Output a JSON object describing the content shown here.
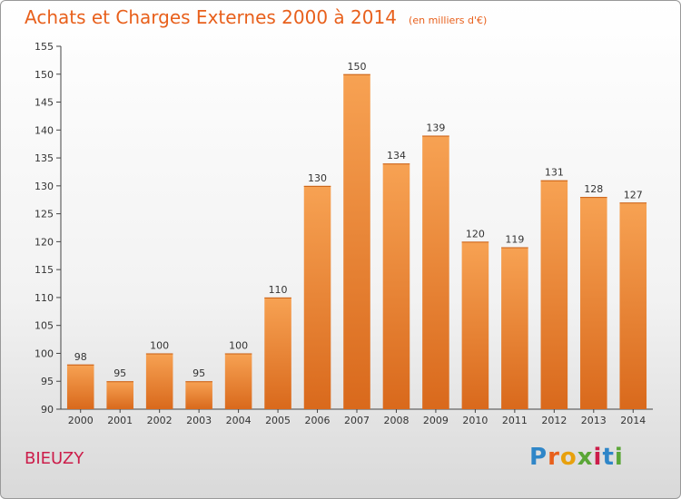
{
  "header": {
    "title": "Achats et Charges Externes 2000 à 2014",
    "unit": "(en milliers d'€)"
  },
  "footer": {
    "place": "BIEUZY",
    "logo": [
      "P",
      "r",
      "o",
      "x",
      "i",
      "t",
      "i"
    ],
    "logo_colors": [
      "#2f86c8",
      "#e8601c",
      "#e8a10e",
      "#5aa637",
      "#cc1d4a",
      "#2f86c8",
      "#5aa637"
    ]
  },
  "colors": {
    "bar_top": "#f7a253",
    "bar_bottom": "#d9691c",
    "title": "#e8601c",
    "place": "#cc1d4a"
  },
  "chart_data": {
    "type": "bar",
    "title": "Achats et Charges Externes 2000 à 2014",
    "subtitle": "(en milliers d'€)",
    "categories": [
      "2000",
      "2001",
      "2002",
      "2003",
      "2004",
      "2005",
      "2006",
      "2007",
      "2008",
      "2009",
      "2010",
      "2011",
      "2012",
      "2013",
      "2014"
    ],
    "values": [
      98,
      95,
      100,
      95,
      100,
      110,
      130,
      150,
      134,
      139,
      120,
      119,
      131,
      128,
      127
    ],
    "ylim": [
      90,
      155
    ],
    "yticks": [
      90,
      95,
      100,
      105,
      110,
      115,
      120,
      125,
      130,
      135,
      140,
      145,
      150,
      155
    ],
    "grid": false,
    "legend": "none"
  }
}
